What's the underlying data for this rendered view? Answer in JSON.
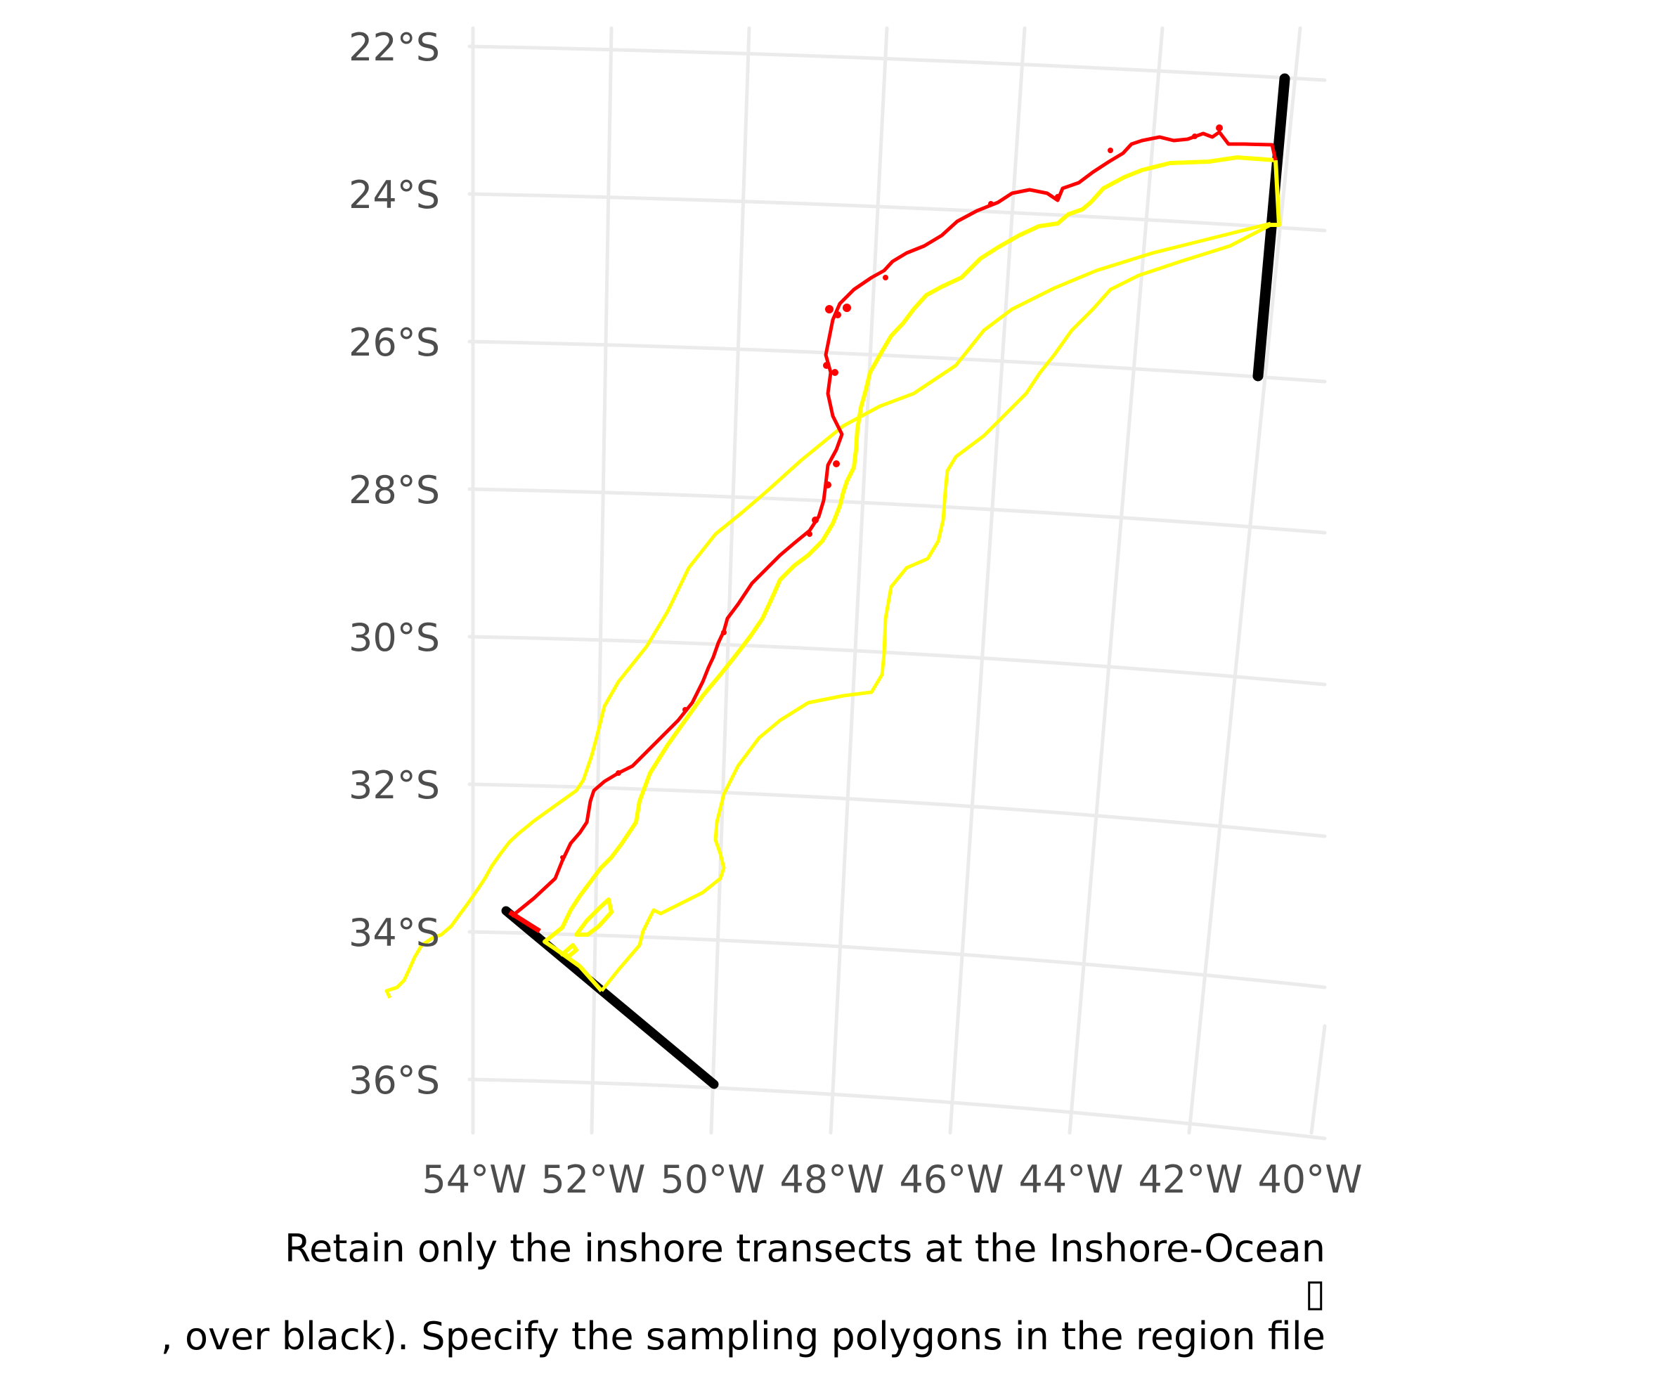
{
  "map": {
    "lat_labels": [
      "22°S",
      "24°S",
      "26°S",
      "28°S",
      "30°S",
      "32°S",
      "34°S",
      "36°S"
    ],
    "lon_labels": [
      "54°W",
      "52°W",
      "50°W",
      "48°W",
      "46°W",
      "44°W",
      "42°W",
      "40°W"
    ],
    "colors": {
      "grid": "#ebebeb",
      "coast_line": "#ff0000",
      "region_polygon": "#ffff00",
      "transect": "#000000"
    }
  },
  "caption": {
    "line1": "Retain only the inshore transects at the Inshore-Ocean",
    "glyph": "▯",
    "line2": ", over black). Specify the sampling polygons in the region file"
  }
}
